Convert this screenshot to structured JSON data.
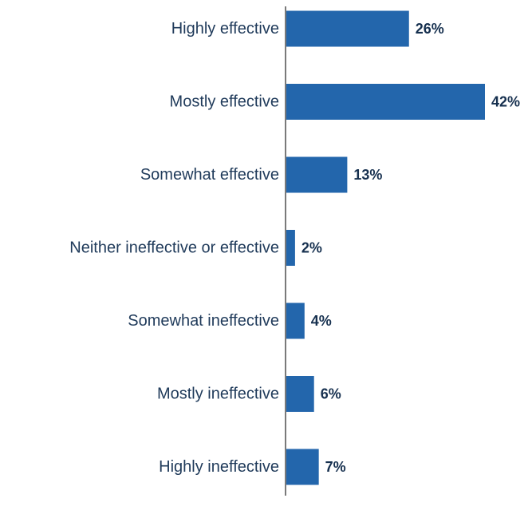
{
  "chart_data": {
    "type": "bar",
    "orientation": "horizontal",
    "categories": [
      "Highly effective",
      "Mostly effective",
      "Somewhat effective",
      "Neither ineffective or effective",
      "Somewhat ineffective",
      "Mostly ineffective",
      "Highly ineffective"
    ],
    "values": [
      26,
      42,
      13,
      2,
      4,
      6,
      7
    ],
    "value_labels": [
      "26%",
      "42%",
      "13%",
      "2%",
      "4%",
      "6%",
      "7%"
    ],
    "xlim": [
      0,
      42
    ],
    "grid": false,
    "legend": "none"
  },
  "colors": {
    "bar": "#2366ac",
    "axis": "#7a7a7a",
    "category_text": "#1f3a5a",
    "value_text": "#16304f"
  }
}
